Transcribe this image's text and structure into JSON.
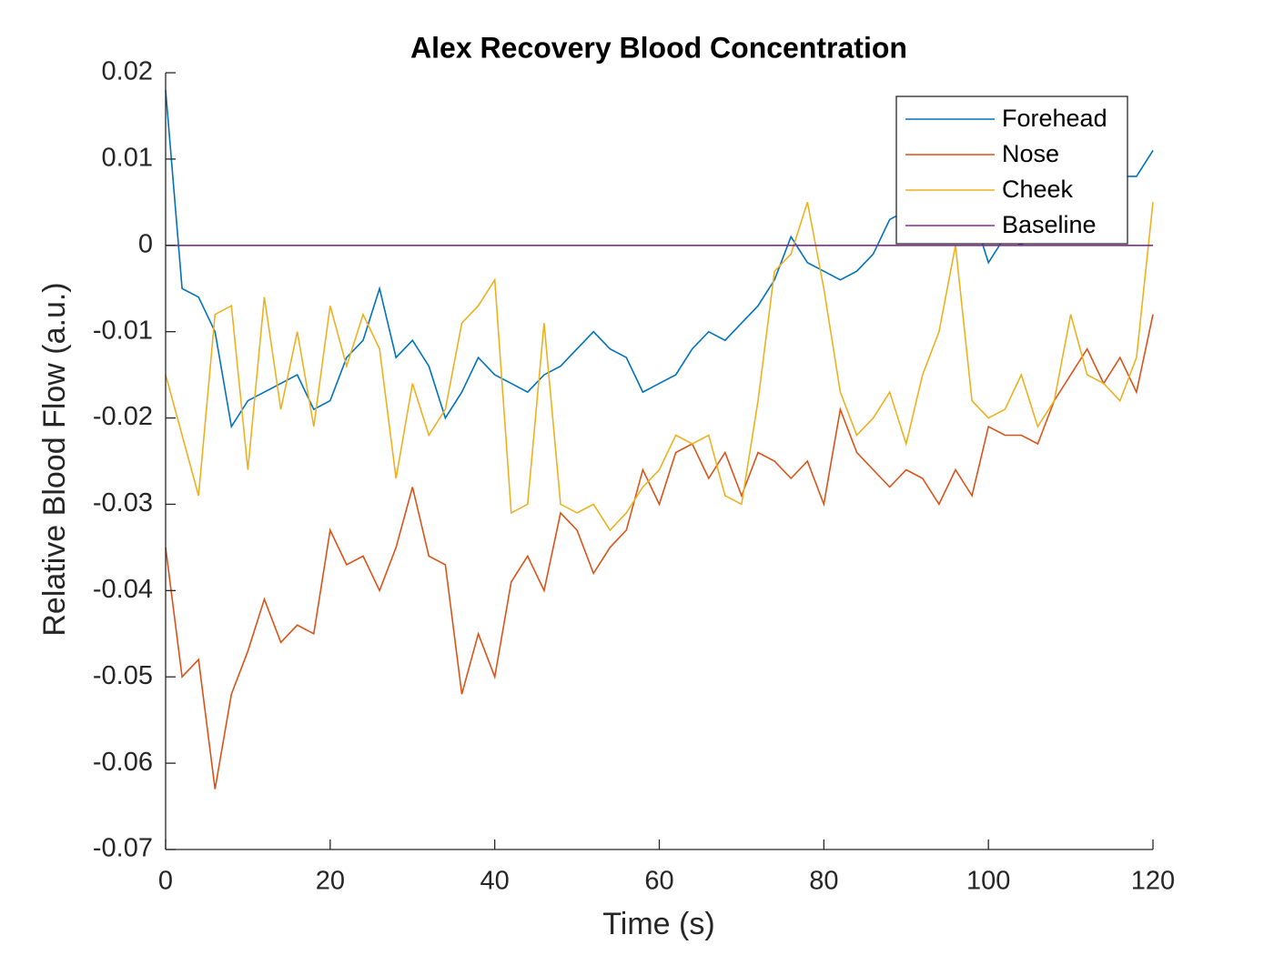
{
  "chart_data": {
    "type": "line",
    "title": "Alex Recovery Blood Concentration",
    "xlabel": "Time (s)",
    "ylabel": "Relative Blood Flow (a.u.)",
    "xlim": [
      0,
      120
    ],
    "ylim": [
      -0.07,
      0.02
    ],
    "xticks": [
      0,
      20,
      40,
      60,
      80,
      100,
      120
    ],
    "yticks": [
      -0.07,
      -0.06,
      -0.05,
      -0.04,
      -0.03,
      -0.02,
      -0.01,
      0,
      0.01,
      0.02
    ],
    "legend": "northeast",
    "x": [
      0,
      2,
      4,
      6,
      8,
      10,
      12,
      14,
      16,
      18,
      20,
      22,
      24,
      26,
      28,
      30,
      32,
      34,
      36,
      38,
      40,
      42,
      44,
      46,
      48,
      50,
      52,
      54,
      56,
      58,
      60,
      62,
      64,
      66,
      68,
      70,
      72,
      74,
      76,
      78,
      80,
      82,
      84,
      86,
      88,
      90,
      92,
      94,
      96,
      98,
      100,
      102,
      104,
      106,
      108,
      110,
      112,
      114,
      116,
      118,
      120
    ],
    "series": [
      {
        "name": "Forehead",
        "color": "#0072bd",
        "values": [
          0.018,
          -0.005,
          -0.006,
          -0.01,
          -0.021,
          -0.018,
          -0.017,
          -0.016,
          -0.015,
          -0.019,
          -0.018,
          -0.013,
          -0.011,
          -0.005,
          -0.013,
          -0.011,
          -0.014,
          -0.02,
          -0.017,
          -0.013,
          -0.015,
          -0.016,
          -0.017,
          -0.015,
          -0.014,
          -0.012,
          -0.01,
          -0.012,
          -0.013,
          -0.017,
          -0.016,
          -0.015,
          -0.012,
          -0.01,
          -0.011,
          -0.009,
          -0.007,
          -0.004,
          0.001,
          -0.002,
          -0.003,
          -0.004,
          -0.003,
          -0.001,
          0.003,
          0.004,
          0.006,
          0.004,
          0.003,
          0.004,
          -0.002,
          0.001,
          0,
          0.002,
          0.001,
          0.003,
          0.004,
          0.006,
          0.008,
          0.008,
          0.011
        ]
      },
      {
        "name": "Nose",
        "color": "#d95319",
        "values": [
          -0.035,
          -0.05,
          -0.048,
          -0.063,
          -0.052,
          -0.047,
          -0.041,
          -0.046,
          -0.044,
          -0.045,
          -0.033,
          -0.037,
          -0.036,
          -0.04,
          -0.035,
          -0.028,
          -0.036,
          -0.037,
          -0.052,
          -0.045,
          -0.05,
          -0.039,
          -0.036,
          -0.04,
          -0.031,
          -0.033,
          -0.038,
          -0.035,
          -0.033,
          -0.026,
          -0.03,
          -0.024,
          -0.023,
          -0.027,
          -0.024,
          -0.029,
          -0.024,
          -0.025,
          -0.027,
          -0.025,
          -0.03,
          -0.019,
          -0.024,
          -0.026,
          -0.028,
          -0.026,
          -0.027,
          -0.03,
          -0.026,
          -0.029,
          -0.021,
          -0.022,
          -0.022,
          -0.023,
          -0.018,
          -0.015,
          -0.012,
          -0.016,
          -0.013,
          -0.017,
          -0.008
        ]
      },
      {
        "name": "Cheek",
        "color": "#edb120",
        "values": [
          -0.015,
          -0.022,
          -0.029,
          -0.008,
          -0.007,
          -0.026,
          -0.006,
          -0.019,
          -0.01,
          -0.021,
          -0.007,
          -0.014,
          -0.008,
          -0.012,
          -0.027,
          -0.016,
          -0.022,
          -0.019,
          -0.009,
          -0.007,
          -0.004,
          -0.031,
          -0.03,
          -0.009,
          -0.03,
          -0.031,
          -0.03,
          -0.033,
          -0.031,
          -0.028,
          -0.026,
          -0.022,
          -0.023,
          -0.022,
          -0.029,
          -0.03,
          -0.018,
          -0.003,
          -0.001,
          0.005,
          -0.005,
          -0.017,
          -0.022,
          -0.02,
          -0.017,
          -0.023,
          -0.015,
          -0.01,
          0,
          -0.018,
          -0.02,
          -0.019,
          -0.015,
          -0.021,
          -0.018,
          -0.008,
          -0.015,
          -0.016,
          -0.018,
          -0.013,
          0.005
        ]
      },
      {
        "name": "Baseline",
        "color": "#7e2f8e",
        "values": [
          0,
          0,
          0,
          0,
          0,
          0,
          0,
          0,
          0,
          0,
          0,
          0,
          0,
          0,
          0,
          0,
          0,
          0,
          0,
          0,
          0,
          0,
          0,
          0,
          0,
          0,
          0,
          0,
          0,
          0,
          0,
          0,
          0,
          0,
          0,
          0,
          0,
          0,
          0,
          0,
          0,
          0,
          0,
          0,
          0,
          0,
          0,
          0,
          0,
          0,
          0,
          0,
          0,
          0,
          0,
          0,
          0,
          0,
          0,
          0,
          0
        ]
      }
    ]
  }
}
